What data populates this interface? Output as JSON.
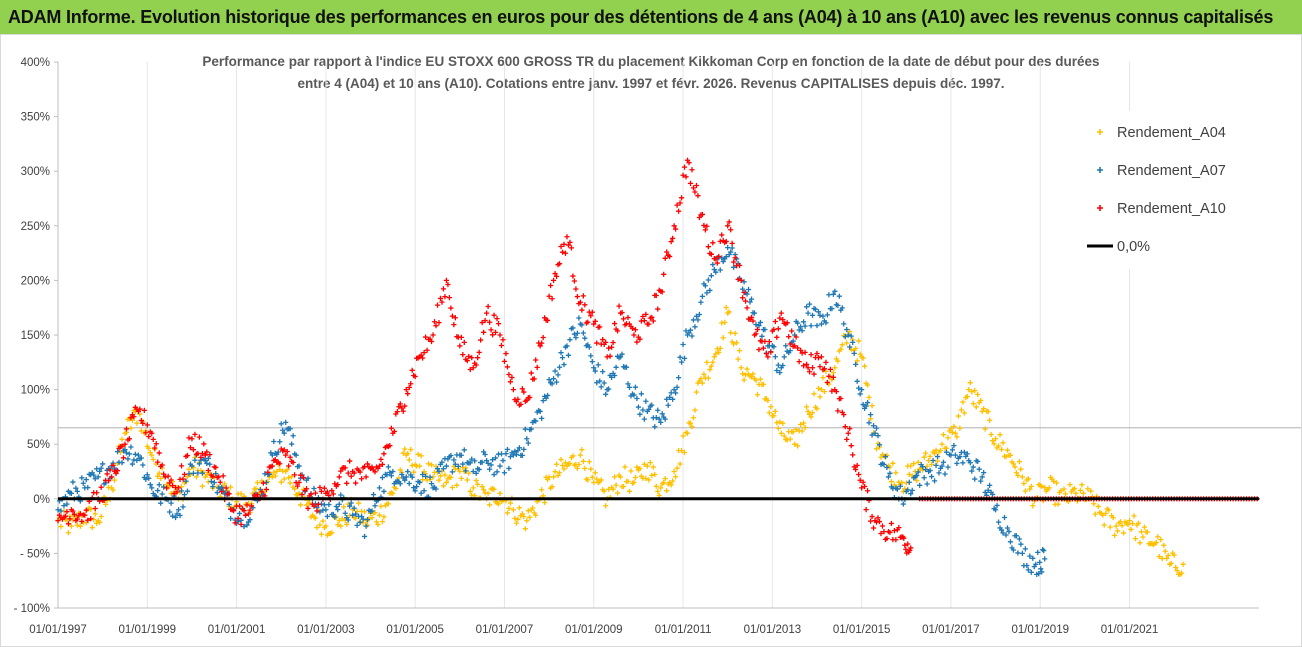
{
  "banner": {
    "title": "ADAM Informe. Evolution historique des performances en euros pour des détentions de 4 ans (A04) à 10 ans (A10) avec les revenus connus capitalisés"
  },
  "chart_data": {
    "type": "scatter",
    "title_line1": "Performance par rapport à l'indice EU STOXX 600 GROSS TR  du placement Kikkoman Corp en fonction de la date de début pour des durées",
    "title_line2": "entre 4 (A04) et 10 ans (A10). Cotations entre janv. 1997 et févr. 2026. Revenus CAPITALISES depuis déc. 1997.",
    "xlabel": "",
    "ylabel": "",
    "xlim": [
      1997.0,
      2023.9
    ],
    "ylim": [
      -100,
      400
    ],
    "y_ticks": [
      "400%",
      "350%",
      "300%",
      "250%",
      "200%",
      "150%",
      "100%",
      "50%",
      "0%",
      "- 50%",
      "- 100%"
    ],
    "y_tick_values": [
      400,
      350,
      300,
      250,
      200,
      150,
      100,
      50,
      0,
      -50,
      -100
    ],
    "x_ticks": [
      "01/01/1997",
      "01/01/1999",
      "01/01/2001",
      "01/01/2003",
      "01/01/2005",
      "01/01/2007",
      "01/01/2009",
      "01/01/2011",
      "01/01/2013",
      "01/01/2015",
      "01/01/2017",
      "01/01/2019",
      "01/01/2021"
    ],
    "x_tick_values": [
      1997,
      1999,
      2001,
      2003,
      2005,
      2007,
      2009,
      2011,
      2013,
      2015,
      2017,
      2019,
      2021
    ],
    "reference_line_value": 65,
    "series": [
      {
        "name": "Rendement_A04",
        "color": "#ffc000",
        "x": [
          1997.0,
          1997.3,
          1997.6,
          1997.9,
          1998.2,
          1998.5,
          1998.8,
          1999.1,
          1999.4,
          1999.7,
          2000.0,
          2000.3,
          2000.6,
          2000.9,
          2001.2,
          2001.5,
          2001.8,
          2002.1,
          2002.4,
          2002.7,
          2003.0,
          2003.3,
          2003.6,
          2003.9,
          2004.2,
          2004.5,
          2004.8,
          2005.1,
          2005.4,
          2005.7,
          2006.0,
          2006.3,
          2006.6,
          2006.9,
          2007.2,
          2007.5,
          2007.8,
          2008.1,
          2008.4,
          2008.7,
          2009.0,
          2009.3,
          2009.6,
          2009.9,
          2010.2,
          2010.5,
          2010.8,
          2011.1,
          2011.4,
          2011.7,
          2012.0,
          2012.3,
          2012.6,
          2012.9,
          2013.2,
          2013.5,
          2013.8,
          2014.1,
          2014.4,
          2014.7,
          2015.0,
          2015.3,
          2015.6,
          2015.9,
          2016.2,
          2016.5,
          2016.8,
          2017.1,
          2017.4,
          2017.7,
          2018.0,
          2018.3,
          2018.6,
          2018.9,
          2019.2,
          2019.5,
          2019.8,
          2020.1,
          2020.4,
          2020.7,
          2021.0,
          2021.3,
          2021.6,
          2021.9,
          2022.2
        ],
        "y": [
          -20,
          -25,
          -15,
          -20,
          10,
          60,
          80,
          40,
          20,
          0,
          30,
          20,
          10,
          0,
          -5,
          5,
          20,
          25,
          5,
          -15,
          -25,
          -20,
          -10,
          -20,
          -15,
          5,
          40,
          30,
          20,
          15,
          25,
          10,
          0,
          5,
          -10,
          -20,
          0,
          20,
          30,
          40,
          15,
          0,
          20,
          15,
          30,
          10,
          25,
          60,
          110,
          130,
          170,
          120,
          110,
          90,
          60,
          50,
          80,
          100,
          120,
          150,
          130,
          60,
          30,
          15,
          25,
          35,
          50,
          60,
          100,
          80,
          55,
          40,
          20,
          0,
          10,
          0,
          5,
          0,
          -15,
          -25,
          -20,
          -35,
          -40,
          -60,
          -60
        ]
      },
      {
        "name": "Rendement_A07",
        "color": "#1f77b4",
        "x": [
          1997.0,
          1997.3,
          1997.6,
          1997.9,
          1998.2,
          1998.5,
          1998.8,
          1999.1,
          1999.4,
          1999.7,
          2000.0,
          2000.3,
          2000.6,
          2000.9,
          2001.2,
          2001.5,
          2001.8,
          2002.1,
          2002.4,
          2002.7,
          2003.0,
          2003.3,
          2003.6,
          2003.9,
          2004.2,
          2004.5,
          2004.8,
          2005.1,
          2005.4,
          2005.7,
          2006.0,
          2006.3,
          2006.6,
          2006.9,
          2007.2,
          2007.5,
          2007.8,
          2008.1,
          2008.4,
          2008.7,
          2009.0,
          2009.3,
          2009.6,
          2009.9,
          2010.2,
          2010.5,
          2010.8,
          2011.1,
          2011.4,
          2011.7,
          2012.0,
          2012.3,
          2012.6,
          2012.9,
          2013.2,
          2013.5,
          2013.8,
          2014.1,
          2014.4,
          2014.7,
          2015.0,
          2015.3,
          2015.6,
          2015.9,
          2016.2,
          2016.5,
          2016.8,
          2017.1,
          2017.4,
          2017.7,
          2018.0,
          2018.3,
          2018.6,
          2018.9,
          2019.1
        ],
        "y": [
          -10,
          5,
          10,
          20,
          30,
          45,
          40,
          10,
          0,
          -10,
          30,
          35,
          10,
          -10,
          -15,
          0,
          40,
          70,
          30,
          0,
          -10,
          -5,
          -15,
          -25,
          10,
          25,
          20,
          15,
          10,
          30,
          40,
          25,
          35,
          30,
          40,
          55,
          80,
          110,
          140,
          160,
          120,
          100,
          130,
          95,
          80,
          70,
          100,
          150,
          180,
          210,
          230,
          200,
          170,
          140,
          120,
          150,
          170,
          160,
          190,
          150,
          100,
          60,
          20,
          0,
          20,
          25,
          30,
          40,
          35,
          20,
          -10,
          -30,
          -50,
          -60,
          -55
        ]
      },
      {
        "name": "Rendement_A10",
        "color": "#ff0000",
        "x": [
          1997.0,
          1997.3,
          1997.6,
          1997.9,
          1998.2,
          1998.5,
          1998.8,
          1999.1,
          1999.4,
          1999.7,
          2000.0,
          2000.3,
          2000.6,
          2000.9,
          2001.2,
          2001.5,
          2001.8,
          2002.1,
          2002.4,
          2002.7,
          2003.0,
          2003.3,
          2003.6,
          2003.9,
          2004.2,
          2004.5,
          2004.8,
          2005.1,
          2005.4,
          2005.7,
          2006.0,
          2006.3,
          2006.6,
          2006.9,
          2007.2,
          2007.5,
          2007.8,
          2008.1,
          2008.4,
          2008.7,
          2009.0,
          2009.3,
          2009.6,
          2009.9,
          2010.2,
          2010.5,
          2010.8,
          2011.1,
          2011.4,
          2011.7,
          2012.0,
          2012.3,
          2012.6,
          2012.9,
          2013.2,
          2013.5,
          2013.8,
          2014.1,
          2014.4,
          2014.7,
          2015.0,
          2015.3,
          2015.6,
          2015.9,
          2016.1
        ],
        "y": [
          -20,
          -10,
          -15,
          0,
          20,
          50,
          80,
          60,
          20,
          10,
          55,
          40,
          20,
          -10,
          -15,
          0,
          30,
          40,
          15,
          -5,
          5,
          20,
          25,
          20,
          30,
          60,
          100,
          130,
          150,
          200,
          140,
          120,
          170,
          150,
          100,
          90,
          140,
          200,
          240,
          180,
          160,
          130,
          170,
          150,
          160,
          190,
          250,
          310,
          260,
          220,
          250,
          200,
          150,
          130,
          170,
          140,
          120,
          130,
          100,
          60,
          10,
          -20,
          -30,
          -35,
          -45
        ]
      },
      {
        "name": "0,0%",
        "color": "#000000",
        "x": [
          1997.0,
          2023.9
        ],
        "y": [
          0,
          0
        ]
      }
    ],
    "flat_segment": {
      "series": "Rendement_A10",
      "from": 2016.3,
      "to": 2023.9,
      "value": 0
    },
    "legend": {
      "position": "top-right",
      "items": [
        {
          "label": "Rendement_A04",
          "marker": "+",
          "color": "#ffc000"
        },
        {
          "label": "Rendement_A07",
          "marker": "+",
          "color": "#1f77b4"
        },
        {
          "label": "Rendement_A10",
          "marker": "+",
          "color": "#ff0000"
        },
        {
          "label": "0,0%",
          "marker": "line",
          "color": "#000000"
        }
      ]
    }
  }
}
